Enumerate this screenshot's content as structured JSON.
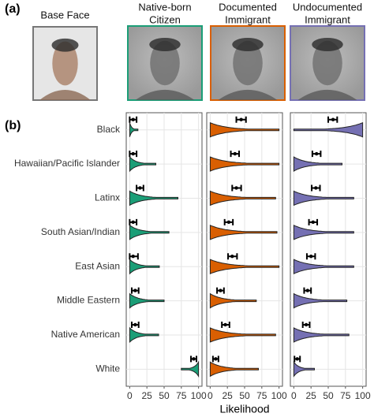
{
  "panel_labels": [
    "(a)",
    "(b)"
  ],
  "faces": [
    {
      "label": [
        "Base Face"
      ],
      "color": "#777777"
    },
    {
      "label": [
        "Native-born",
        "Citizen"
      ],
      "color": "#1b9e77"
    },
    {
      "label": [
        "Documented",
        "Immigrant"
      ],
      "color": "#d95f02"
    },
    {
      "label": [
        "Undocumented",
        "Immigrant"
      ],
      "color": "#7570b3"
    }
  ],
  "chart_data": {
    "type": "violin",
    "xlabel": "Likelihood",
    "categories": [
      "Black",
      "Hawaiian/Pacific Islander",
      "Latinx",
      "South Asian/Indian",
      "East Asian",
      "Middle Eastern",
      "Native American",
      "White"
    ],
    "xlim": [
      -5,
      105
    ],
    "xticks": [
      0,
      25,
      50,
      75,
      100
    ],
    "grid": true,
    "series": [
      {
        "color": "#1b9e77",
        "values": [
          5,
          5,
          15,
          5,
          5,
          8,
          8,
          93
        ],
        "ci_low": [
          0,
          0,
          10,
          0,
          0,
          3,
          3,
          89
        ],
        "ci_high": [
          10,
          10,
          20,
          10,
          12,
          13,
          13,
          97
        ],
        "min": [
          0,
          0,
          0,
          0,
          0,
          0,
          0,
          75
        ],
        "max": [
          12,
          38,
          70,
          57,
          43,
          50,
          42,
          100
        ]
      },
      {
        "color": "#d95f02",
        "values": [
          45,
          36,
          38,
          27,
          32,
          15,
          22,
          8
        ],
        "ci_low": [
          38,
          30,
          32,
          21,
          26,
          10,
          17,
          4
        ],
        "ci_high": [
          52,
          42,
          45,
          33,
          39,
          20,
          28,
          12
        ],
        "min": [
          0,
          0,
          0,
          0,
          0,
          0,
          0,
          0
        ],
        "max": [
          100,
          100,
          95,
          97,
          100,
          67,
          95,
          70
        ]
      },
      {
        "color": "#7570b3",
        "values": [
          57,
          33,
          32,
          28,
          25,
          20,
          18,
          5
        ],
        "ci_low": [
          50,
          27,
          26,
          22,
          19,
          15,
          13,
          1
        ],
        "ci_high": [
          63,
          39,
          38,
          34,
          31,
          25,
          23,
          9
        ],
        "min": [
          0,
          0,
          0,
          0,
          0,
          0,
          0,
          0
        ],
        "max": [
          100,
          70,
          87,
          87,
          87,
          77,
          80,
          30
        ]
      }
    ]
  }
}
